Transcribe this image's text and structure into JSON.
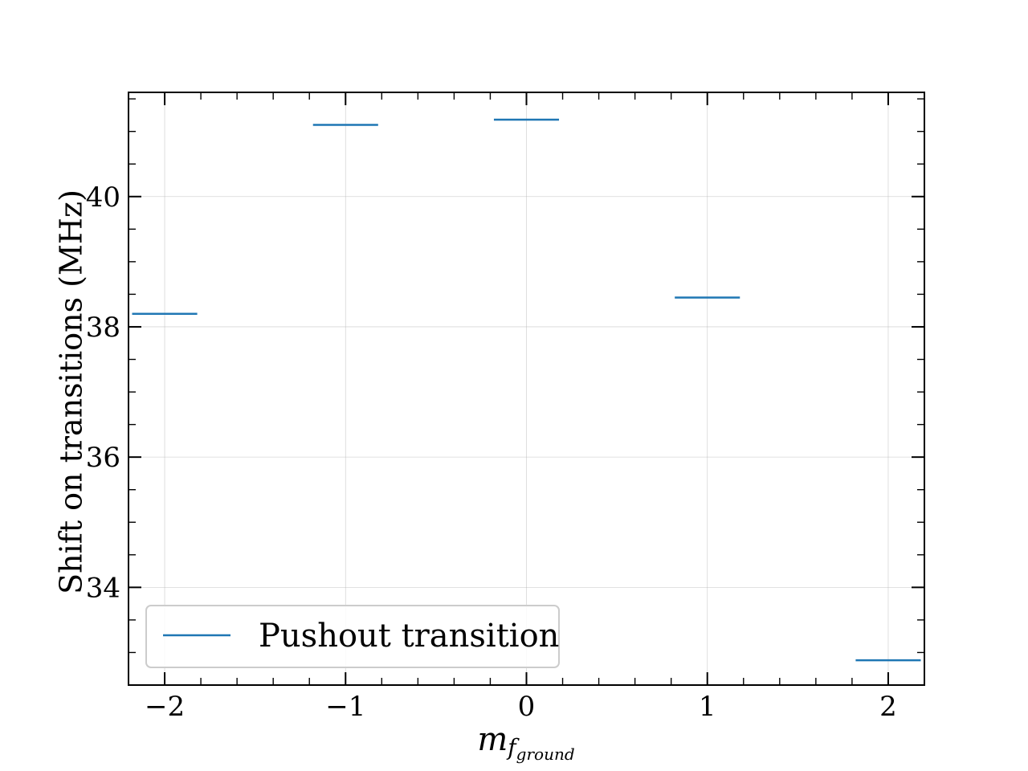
{
  "chart_data": {
    "type": "line",
    "x_tick_labels": [
      "−2",
      "−1",
      "0",
      "1",
      "2"
    ],
    "x_ticks": [
      -2,
      -1,
      0,
      1,
      2
    ],
    "y_tick_labels": [
      "34",
      "36",
      "38",
      "40"
    ],
    "y_ticks": [
      34,
      36,
      38,
      40
    ],
    "xlim": [
      -2.2,
      2.2
    ],
    "ylim": [
      32.5,
      41.6
    ],
    "x_minor_step": 0.2,
    "y_minor_step": 0.5,
    "xlabel_main": "m",
    "xlabel_sub": "f",
    "xlabel_subsub": "ground",
    "ylabel": "Shift on transitions (MHz)",
    "grid": true,
    "legend_position": "lower-left",
    "series": [
      {
        "name": "Pushout transition",
        "color": "#1f77b4",
        "half_width": 0.18,
        "points": [
          {
            "x": -2,
            "y": 38.2
          },
          {
            "x": -1,
            "y": 41.1
          },
          {
            "x": 0,
            "y": 41.18
          },
          {
            "x": 1,
            "y": 38.45
          },
          {
            "x": 2,
            "y": 32.88
          }
        ]
      }
    ]
  }
}
